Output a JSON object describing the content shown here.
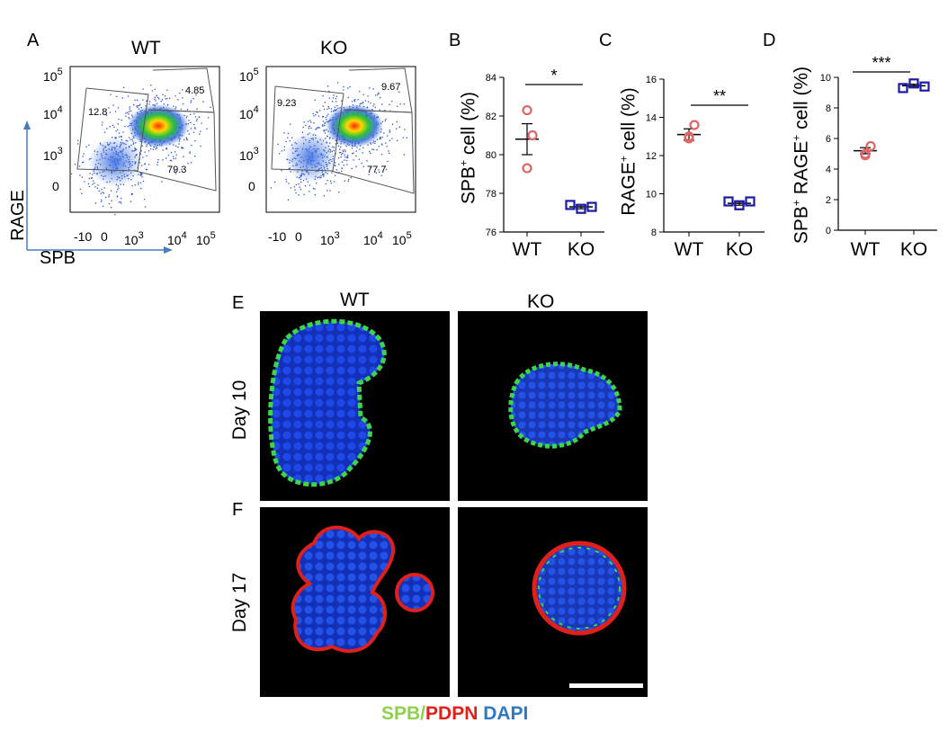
{
  "panels": {
    "A": {
      "label": "A",
      "left_title": "WT",
      "right_title": "KO",
      "y_axis_label": "RAGE",
      "x_axis_label": "SPB",
      "y_ticks": [
        {
          "b": "10",
          "e": "5"
        },
        {
          "b": "10",
          "e": "4"
        },
        {
          "b": "10",
          "e": "3"
        },
        {
          "b": "0",
          "e": ""
        }
      ],
      "x_ticks": [
        {
          "b": "-10",
          "e": ""
        },
        {
          "b": "0",
          "e": ""
        },
        {
          "b": "10",
          "e": "3"
        },
        {
          "b": "10",
          "e": "4"
        },
        {
          "b": "10",
          "e": "5"
        }
      ],
      "wt_gates": [
        "12.8",
        "4.85",
        "79.3"
      ],
      "ko_gates": [
        "9.23",
        "9.67",
        "77.7"
      ]
    },
    "B": {
      "label": "B",
      "ylabel_pre": "SPB",
      "ylabel_sup": "+",
      "ylabel_post": " cell (%)",
      "sig": "*"
    },
    "C": {
      "label": "C",
      "ylabel_pre": "RAGE",
      "ylabel_sup": "+",
      "ylabel_post": " cell (%)",
      "sig": "**"
    },
    "D": {
      "label": "D",
      "ylabel_pre": "SPB",
      "ylabel_sup": "+",
      "ylabel_mid": " RAGE",
      "ylabel_sup2": "+",
      "ylabel_post": " cell (%)",
      "sig": "***"
    },
    "E": {
      "label": "E",
      "wt": "WT",
      "ko": "KO",
      "row": "Day 10"
    },
    "F": {
      "label": "F",
      "row": "Day 17"
    }
  },
  "chart_data": [
    {
      "panel": "B",
      "type": "scatter",
      "categories": [
        "WT",
        "KO"
      ],
      "ylim": [
        76,
        84
      ],
      "yticks": [
        76,
        78,
        80,
        82,
        84
      ],
      "series": [
        {
          "name": "WT",
          "points": [
            82.3,
            81.0,
            79.3
          ],
          "mean": 80.8,
          "sem": 0.8,
          "color": "#e06666",
          "marker": "circle"
        },
        {
          "name": "KO",
          "points": [
            77.4,
            77.2,
            77.3
          ],
          "mean": 77.3,
          "sem": 0.1,
          "color": "#1a1aa6",
          "marker": "square"
        }
      ]
    },
    {
      "panel": "C",
      "type": "scatter",
      "categories": [
        "WT",
        "KO"
      ],
      "ylim": [
        8,
        16
      ],
      "yticks": [
        8,
        10,
        12,
        14,
        16
      ],
      "series": [
        {
          "name": "WT",
          "points": [
            13.0,
            13.6,
            12.9
          ],
          "mean": 13.1,
          "sem": 0.3,
          "color": "#e06666",
          "marker": "circle"
        },
        {
          "name": "KO",
          "points": [
            9.6,
            9.4,
            9.6
          ],
          "mean": 9.5,
          "sem": 0.1,
          "color": "#1a1aa6",
          "marker": "square"
        }
      ]
    },
    {
      "panel": "D",
      "type": "scatter",
      "categories": [
        "WT",
        "KO"
      ],
      "ylim": [
        0,
        10
      ],
      "yticks": [
        0,
        2,
        4,
        6,
        8,
        10
      ],
      "series": [
        {
          "name": "WT",
          "points": [
            4.9,
            5.5,
            5.0
          ],
          "mean": 5.2,
          "sem": 0.2,
          "color": "#e06666",
          "marker": "circle"
        },
        {
          "name": "KO",
          "points": [
            9.3,
            9.6,
            9.4
          ],
          "mean": 9.45,
          "sem": 0.1,
          "color": "#1a1aa6",
          "marker": "square"
        }
      ]
    }
  ],
  "legend": {
    "spb": "SPB/",
    "pdpn": "PDPN",
    "dapi": " DAPI",
    "spb_color": "#8fd14f",
    "pdpn_color": "#e0201b",
    "dapi_color": "#2f78c4"
  }
}
